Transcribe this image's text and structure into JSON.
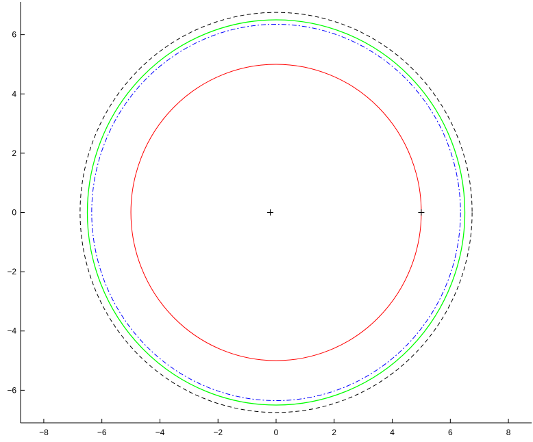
{
  "chart_data": {
    "type": "line",
    "title": "",
    "xlabel": "",
    "ylabel": "",
    "xlim": [
      -8.8,
      8.8
    ],
    "ylim": [
      -7.1,
      7.1
    ],
    "xticks": [
      -8,
      -6,
      -4,
      -2,
      0,
      2,
      4,
      6,
      8
    ],
    "yticks": [
      -6,
      -4,
      -2,
      0,
      2,
      4,
      6
    ],
    "xtick_labels": [
      "−8",
      "−6",
      "−4",
      "−2",
      "0",
      "2",
      "4",
      "6",
      "8"
    ],
    "ytick_labels": [
      "−6",
      "−4",
      "−2",
      "0",
      "2",
      "4",
      "6"
    ],
    "grid": false,
    "legend": "none",
    "series": [
      {
        "shape": "circle",
        "center": [
          0,
          0
        ],
        "radius": 6.75,
        "color": "#000000",
        "linestyle": "dashed"
      },
      {
        "shape": "circle",
        "center": [
          0,
          0
        ],
        "radius": 6.5,
        "color": "#00ff00",
        "linestyle": "solid"
      },
      {
        "shape": "circle",
        "center": [
          0,
          0
        ],
        "radius": 6.35,
        "color": "#0000ff",
        "linestyle": "dashdot"
      },
      {
        "shape": "circle",
        "center": [
          0,
          0
        ],
        "radius": 5.0,
        "color": "#ff0000",
        "linestyle": "solid"
      }
    ],
    "markers": [
      {
        "x": -0.2,
        "y": 0,
        "symbol": "+",
        "color": "#000000"
      },
      {
        "x": 5.0,
        "y": 0,
        "symbol": "+",
        "color": "#000000"
      }
    ]
  }
}
